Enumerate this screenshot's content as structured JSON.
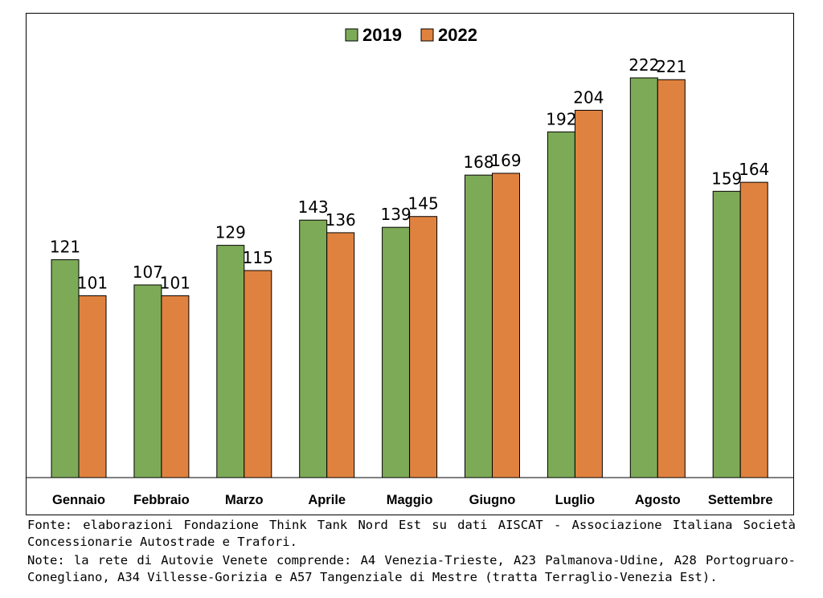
{
  "chart_data": {
    "type": "bar",
    "categories": [
      "Gennaio",
      "Febbraio",
      "Marzo",
      "Aprile",
      "Maggio",
      "Giugno",
      "Luglio",
      "Agosto",
      "Settembre"
    ],
    "series": [
      {
        "name": "2019",
        "color": "#7daa57",
        "values": [
          121,
          107,
          129,
          143,
          139,
          168,
          192,
          222,
          159
        ]
      },
      {
        "name": "2022",
        "color": "#e0823f",
        "values": [
          101,
          101,
          115,
          136,
          145,
          169,
          204,
          221,
          164
        ]
      }
    ],
    "title": "",
    "xlabel": "",
    "ylabel": "",
    "ylim": [
      0,
      222
    ],
    "grid": false,
    "legend": "top-center"
  },
  "source_note": "Fonte: elaborazioni Fondazione Think Tank Nord Est su dati AISCAT - Associazione Italiana Società Concessionarie Autostrade e Trafori.",
  "network_note": "Note: la rete di Autovie Venete comprende: A4 Venezia-Trieste, A23 Palmanova-Udine, A28 Portogruaro-Conegliano, A34 Villesse-Gorizia e A57 Tangenziale di Mestre (tratta Terraglio-Venezia Est)."
}
